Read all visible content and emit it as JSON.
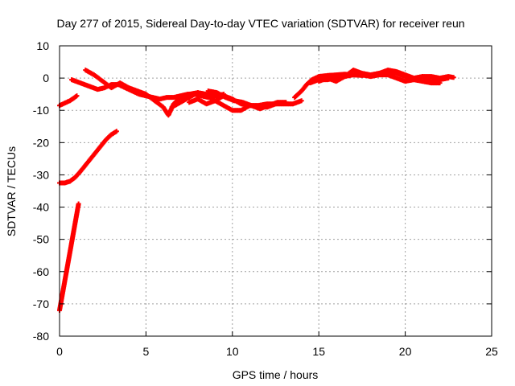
{
  "chart_data": {
    "type": "scatter",
    "title": "Day 277 of 2015, Sidereal Day-to-day VTEC variation (SDTVAR) for receiver reun",
    "xlabel": "GPS time / hours",
    "ylabel": "SDTVAR / TECUs",
    "xlim": [
      0,
      25
    ],
    "ylim": [
      -80,
      10
    ],
    "xticks": [
      0,
      5,
      10,
      15,
      20,
      25
    ],
    "yticks": [
      10,
      0,
      -10,
      -20,
      -30,
      -40,
      -50,
      -60,
      -70,
      -80
    ],
    "grid": true,
    "legend": "none",
    "series": [
      {
        "name": "SDTVAR",
        "color": "#ff0000",
        "marker": "plus",
        "arcs": [
          {
            "x": [
              0.0,
              0.2,
              0.4,
              0.6,
              0.8,
              1.0
            ],
            "y": [
              -8.5,
              -8.0,
              -7.5,
              -7.0,
              -6.3,
              -5.5
            ]
          },
          {
            "x": [
              0.0,
              0.3,
              0.6,
              0.9,
              1.2,
              1.5,
              1.8,
              2.1,
              2.4,
              2.7,
              3.0,
              3.3
            ],
            "y": [
              -32.5,
              -32.5,
              -32.0,
              -30.8,
              -29.0,
              -27.0,
              -25.0,
              -23.0,
              -21.0,
              -19.0,
              -17.5,
              -16.5
            ]
          },
          {
            "x": [
              0.0,
              0.1,
              0.2,
              0.3,
              0.4,
              0.5,
              0.6,
              0.7,
              0.8,
              0.9,
              1.0,
              1.1
            ],
            "y": [
              -72.0,
              -69.0,
              -66.0,
              -63.0,
              -60.0,
              -57.0,
              -54.0,
              -51.0,
              -48.0,
              -45.0,
              -42.0,
              -39.0
            ]
          },
          {
            "x": [
              0.7,
              1.2,
              1.7,
              2.2,
              2.6,
              3.0,
              3.4,
              3.8,
              4.2,
              4.6,
              5.0,
              5.4,
              5.8,
              6.2,
              6.6,
              7.0,
              7.4,
              7.8,
              8.2,
              8.6
            ],
            "y": [
              -0.5,
              -1.5,
              -2.5,
              -3.5,
              -3.0,
              -2.0,
              -2.0,
              -3.0,
              -4.0,
              -5.0,
              -5.5,
              -6.0,
              -6.5,
              -6.0,
              -6.0,
              -5.5,
              -5.0,
              -5.0,
              -5.5,
              -6.0
            ]
          },
          {
            "x": [
              1.5,
              2.0,
              2.5,
              3.0,
              3.5,
              4.0,
              4.5,
              5.0,
              5.5,
              6.0,
              6.3,
              6.6,
              7.0,
              7.5,
              8.0,
              8.5,
              9.0,
              9.5
            ],
            "y": [
              2.5,
              1.0,
              -1.0,
              -3.0,
              -1.5,
              -3.0,
              -4.0,
              -5.0,
              -7.0,
              -9.0,
              -11.5,
              -8.0,
              -6.0,
              -5.0,
              -4.5,
              -5.0,
              -5.5,
              -5.0
            ]
          },
          {
            "x": [
              7.5,
              8.0,
              8.5,
              9.0,
              9.5,
              10.0,
              10.5,
              11.0,
              11.5,
              12.0,
              12.5,
              13.0,
              13.5,
              14.0
            ],
            "y": [
              -7.5,
              -6.5,
              -8.0,
              -7.0,
              -5.5,
              -6.5,
              -8.0,
              -8.5,
              -8.5,
              -8.0,
              -8.0,
              -8.0,
              -8.0,
              -7.0
            ]
          },
          {
            "x": [
              6.5,
              7.0,
              7.5,
              8.0,
              8.5,
              9.0,
              9.5,
              10.0,
              10.5,
              11.0,
              11.5,
              12.0,
              12.5
            ],
            "y": [
              -9.0,
              -7.5,
              -6.0,
              -4.5,
              -5.5,
              -7.0,
              -8.5,
              -10.0,
              -10.0,
              -8.5,
              -8.5,
              -9.0,
              -8.0
            ]
          },
          {
            "x": [
              8.6,
              9.1,
              9.6,
              10.1,
              10.6,
              11.1,
              11.6,
              12.1,
              12.6,
              13.1
            ],
            "y": [
              -4.0,
              -4.5,
              -6.0,
              -7.0,
              -7.5,
              -8.5,
              -9.5,
              -8.5,
              -7.5,
              -7.5
            ]
          },
          {
            "x": [
              13.6,
              14.0,
              14.3,
              14.6,
              15.0,
              15.5,
              16.0,
              16.5,
              17.0,
              17.5,
              18.0,
              18.5,
              19.0,
              19.5,
              20.0,
              20.5,
              21.0,
              21.5,
              22.0
            ],
            "y": [
              -6.0,
              -4.0,
              -2.0,
              -0.5,
              0.5,
              0.8,
              1.0,
              1.2,
              1.0,
              0.8,
              1.0,
              1.5,
              2.0,
              1.5,
              0.5,
              -0.5,
              -1.0,
              -1.5,
              -1.5
            ]
          },
          {
            "x": [
              14.5,
              15.0,
              15.5,
              16.0,
              16.5,
              17.0,
              17.5,
              18.0,
              18.5,
              19.0,
              19.5,
              20.0,
              20.5,
              21.0,
              21.5,
              22.0,
              22.5,
              22.8
            ],
            "y": [
              -1.5,
              -0.5,
              -0.5,
              0.0,
              0.5,
              2.5,
              1.5,
              1.0,
              1.5,
              2.5,
              2.0,
              1.0,
              0.0,
              0.5,
              0.5,
              0.0,
              0.5,
              0.2
            ]
          },
          {
            "x": [
              15.0,
              15.5,
              16.0,
              16.5,
              17.0,
              17.5,
              18.0,
              18.5,
              19.0,
              19.5,
              20.0,
              20.5,
              21.0,
              21.5,
              22.0,
              22.5
            ],
            "y": [
              -1.0,
              0.0,
              -1.0,
              0.5,
              1.0,
              1.0,
              0.5,
              1.0,
              1.0,
              0.0,
              -1.0,
              -0.5,
              0.5,
              -1.0,
              -0.5,
              0.0
            ]
          }
        ]
      }
    ]
  }
}
